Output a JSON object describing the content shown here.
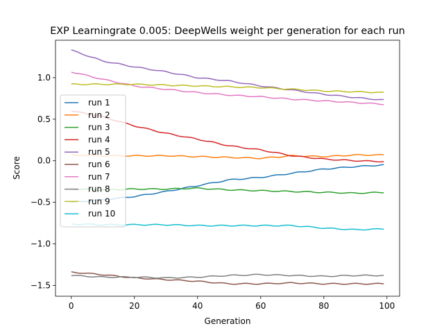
{
  "chart_data": {
    "type": "line",
    "title": "EXP Learningrate 0.005: DeepWells weight per generation for each run",
    "xlabel": "Generation",
    "ylabel": "Score",
    "xlim": [
      -5,
      104
    ],
    "ylim": [
      -1.63,
      1.45
    ],
    "xticks": [
      0,
      20,
      40,
      60,
      80,
      100
    ],
    "yticks": [
      -1.5,
      -1.0,
      -0.5,
      0.0,
      0.5,
      1.0
    ],
    "xtick_labels": [
      "0",
      "20",
      "40",
      "60",
      "80",
      "100"
    ],
    "ytick_labels": [
      "−1.5",
      "−1.0",
      "−0.5",
      "0.0",
      "0.5",
      "1.0"
    ],
    "grid": false,
    "legend_position": "center-left",
    "series": [
      {
        "name": "run 1",
        "color": "#1f77b4",
        "anchors": [
          [
            0,
            -0.5
          ],
          [
            10,
            -0.47
          ],
          [
            20,
            -0.43
          ],
          [
            30,
            -0.37
          ],
          [
            40,
            -0.3
          ],
          [
            50,
            -0.23
          ],
          [
            60,
            -0.2
          ],
          [
            70,
            -0.15
          ],
          [
            80,
            -0.1
          ],
          [
            90,
            -0.07
          ],
          [
            99,
            -0.05
          ]
        ]
      },
      {
        "name": "run 2",
        "color": "#ff7f0e",
        "anchors": [
          [
            0,
            0.07
          ],
          [
            10,
            0.06
          ],
          [
            20,
            0.06
          ],
          [
            30,
            0.06
          ],
          [
            40,
            0.05
          ],
          [
            50,
            0.04
          ],
          [
            60,
            0.03
          ],
          [
            70,
            0.06
          ],
          [
            80,
            0.05
          ],
          [
            90,
            0.07
          ],
          [
            99,
            0.07
          ]
        ]
      },
      {
        "name": "run 3",
        "color": "#2ca02c",
        "anchors": [
          [
            0,
            -0.34
          ],
          [
            10,
            -0.35
          ],
          [
            20,
            -0.34
          ],
          [
            30,
            -0.34
          ],
          [
            40,
            -0.33
          ],
          [
            50,
            -0.35
          ],
          [
            60,
            -0.36
          ],
          [
            70,
            -0.37
          ],
          [
            80,
            -0.38
          ],
          [
            90,
            -0.39
          ],
          [
            99,
            -0.38
          ]
        ]
      },
      {
        "name": "run 4",
        "color": "#d62728",
        "anchors": [
          [
            0,
            0.6
          ],
          [
            10,
            0.53
          ],
          [
            20,
            0.42
          ],
          [
            30,
            0.33
          ],
          [
            40,
            0.26
          ],
          [
            50,
            0.18
          ],
          [
            60,
            0.13
          ],
          [
            70,
            0.06
          ],
          [
            80,
            0.02
          ],
          [
            90,
            0.0
          ],
          [
            99,
            -0.01
          ]
        ]
      },
      {
        "name": "run 5",
        "color": "#9467bd",
        "anchors": [
          [
            0,
            1.33
          ],
          [
            10,
            1.2
          ],
          [
            20,
            1.13
          ],
          [
            30,
            1.07
          ],
          [
            40,
            1.0
          ],
          [
            50,
            0.96
          ],
          [
            60,
            0.9
          ],
          [
            70,
            0.85
          ],
          [
            80,
            0.8
          ],
          [
            90,
            0.76
          ],
          [
            99,
            0.73
          ]
        ]
      },
      {
        "name": "run 6",
        "color": "#8c564b",
        "anchors": [
          [
            0,
            -1.34
          ],
          [
            10,
            -1.37
          ],
          [
            20,
            -1.41
          ],
          [
            30,
            -1.43
          ],
          [
            40,
            -1.45
          ],
          [
            50,
            -1.48
          ],
          [
            60,
            -1.48
          ],
          [
            70,
            -1.47
          ],
          [
            80,
            -1.48
          ],
          [
            90,
            -1.48
          ],
          [
            99,
            -1.48
          ]
        ]
      },
      {
        "name": "run 7",
        "color": "#e377c2",
        "anchors": [
          [
            0,
            1.07
          ],
          [
            10,
            0.98
          ],
          [
            20,
            0.9
          ],
          [
            30,
            0.86
          ],
          [
            40,
            0.82
          ],
          [
            50,
            0.79
          ],
          [
            60,
            0.77
          ],
          [
            70,
            0.74
          ],
          [
            80,
            0.72
          ],
          [
            90,
            0.7
          ],
          [
            99,
            0.68
          ]
        ]
      },
      {
        "name": "run 8",
        "color": "#7f7f7f",
        "anchors": [
          [
            0,
            -1.38
          ],
          [
            10,
            -1.4
          ],
          [
            20,
            -1.4
          ],
          [
            30,
            -1.41
          ],
          [
            40,
            -1.4
          ],
          [
            50,
            -1.38
          ],
          [
            60,
            -1.37
          ],
          [
            70,
            -1.38
          ],
          [
            80,
            -1.39
          ],
          [
            90,
            -1.38
          ],
          [
            99,
            -1.38
          ]
        ]
      },
      {
        "name": "run 9",
        "color": "#bcbd22",
        "anchors": [
          [
            0,
            0.92
          ],
          [
            10,
            0.92
          ],
          [
            20,
            0.92
          ],
          [
            30,
            0.91
          ],
          [
            40,
            0.9
          ],
          [
            50,
            0.89
          ],
          [
            60,
            0.88
          ],
          [
            70,
            0.86
          ],
          [
            80,
            0.84
          ],
          [
            90,
            0.83
          ],
          [
            99,
            0.82
          ]
        ]
      },
      {
        "name": "run 10",
        "color": "#17becf",
        "anchors": [
          [
            0,
            -0.76
          ],
          [
            10,
            -0.77
          ],
          [
            20,
            -0.77
          ],
          [
            30,
            -0.77
          ],
          [
            40,
            -0.78
          ],
          [
            50,
            -0.78
          ],
          [
            60,
            -0.78
          ],
          [
            70,
            -0.78
          ],
          [
            80,
            -0.81
          ],
          [
            90,
            -0.83
          ],
          [
            99,
            -0.82
          ]
        ]
      }
    ]
  }
}
